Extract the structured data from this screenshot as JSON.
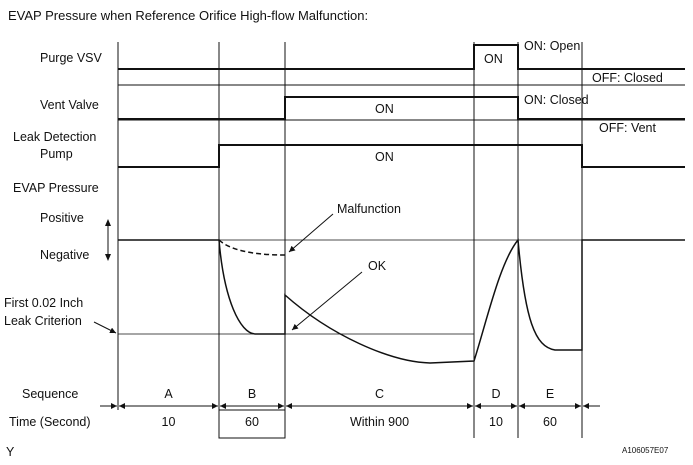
{
  "title": "EVAP Pressure when Reference Orifice High-flow Malfunction:",
  "rows": {
    "purge_vsv": "Purge VSV",
    "vent_valve": "Vent Valve",
    "leak_pump_line1": "Leak Detection",
    "leak_pump_line2": "Pump",
    "evap_pressure": "EVAP Pressure",
    "positive": "Positive",
    "negative": "Negative",
    "criterion_line1": "First 0.02 Inch",
    "criterion_line2": "Leak Criterion",
    "sequence": "Sequence",
    "time": "Time (Second)"
  },
  "state_labels": {
    "purge_on": "ON: Open",
    "purge_off": "OFF: Closed",
    "vent_on": "ON: Closed",
    "vent_off": "OFF: Vent",
    "purge_pulse": "ON",
    "vent_pulse": "ON",
    "pump_pulse": "ON"
  },
  "annotations": {
    "malfunction": "Malfunction",
    "ok": "OK"
  },
  "sequences": [
    {
      "id": "A",
      "time": "10"
    },
    {
      "id": "B",
      "time": "60"
    },
    {
      "id": "C",
      "time": "Within 900"
    },
    {
      "id": "D",
      "time": "10"
    },
    {
      "id": "E",
      "time": "60"
    }
  ],
  "footer": {
    "left": "Y",
    "right": "A106057E07"
  },
  "colors": {
    "line": "#111111",
    "grid": "#9a9a9a"
  }
}
